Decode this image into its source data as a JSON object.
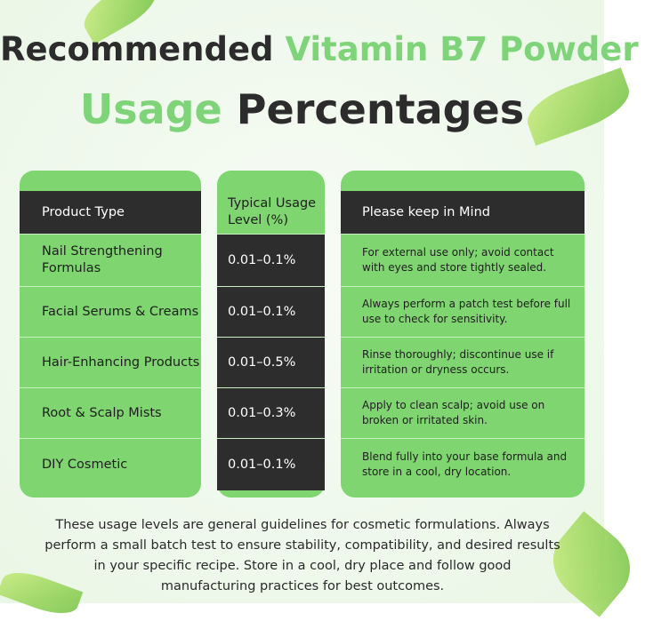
{
  "header": {
    "title_line1": {
      "dark": "Recommended",
      "green": "Vitamin B7 Powder"
    },
    "title_line2": {
      "green": "Usage",
      "dark": "Percentages"
    }
  },
  "table": {
    "headers": [
      "Product Type",
      "Typical Usage Level (%)",
      "Please keep in Mind"
    ],
    "rows": [
      [
        "Nail Strengthening Formulas",
        "0.01–0.1%",
        "For external use only; avoid contact with eyes and store tightly sealed."
      ],
      [
        "Facial Serums & Creams",
        "0.01–0.1%",
        "Always perform a patch test before full use to check for sensitivity."
      ],
      [
        "Hair-Enhancing Products",
        "0.01–0.5%",
        "Rinse thoroughly; discontinue use if irritation or dryness occurs."
      ],
      [
        "Root & Scalp Mists",
        "0.01–0.3%",
        "Apply to clean scalp; avoid use on broken or irritated skin."
      ],
      [
        "DIY Cosmetic",
        "0.01–0.1%",
        "Blend fully into your base formula and store in a cool, dry location."
      ]
    ]
  },
  "footer": {
    "note": "These usage levels are general guidelines for cosmetic formulations. Always perform a small batch test to ensure stability, compatibility, and desired results in your specific recipe. Store in a cool, dry place and follow good manufacturing practices for best outcomes."
  }
}
